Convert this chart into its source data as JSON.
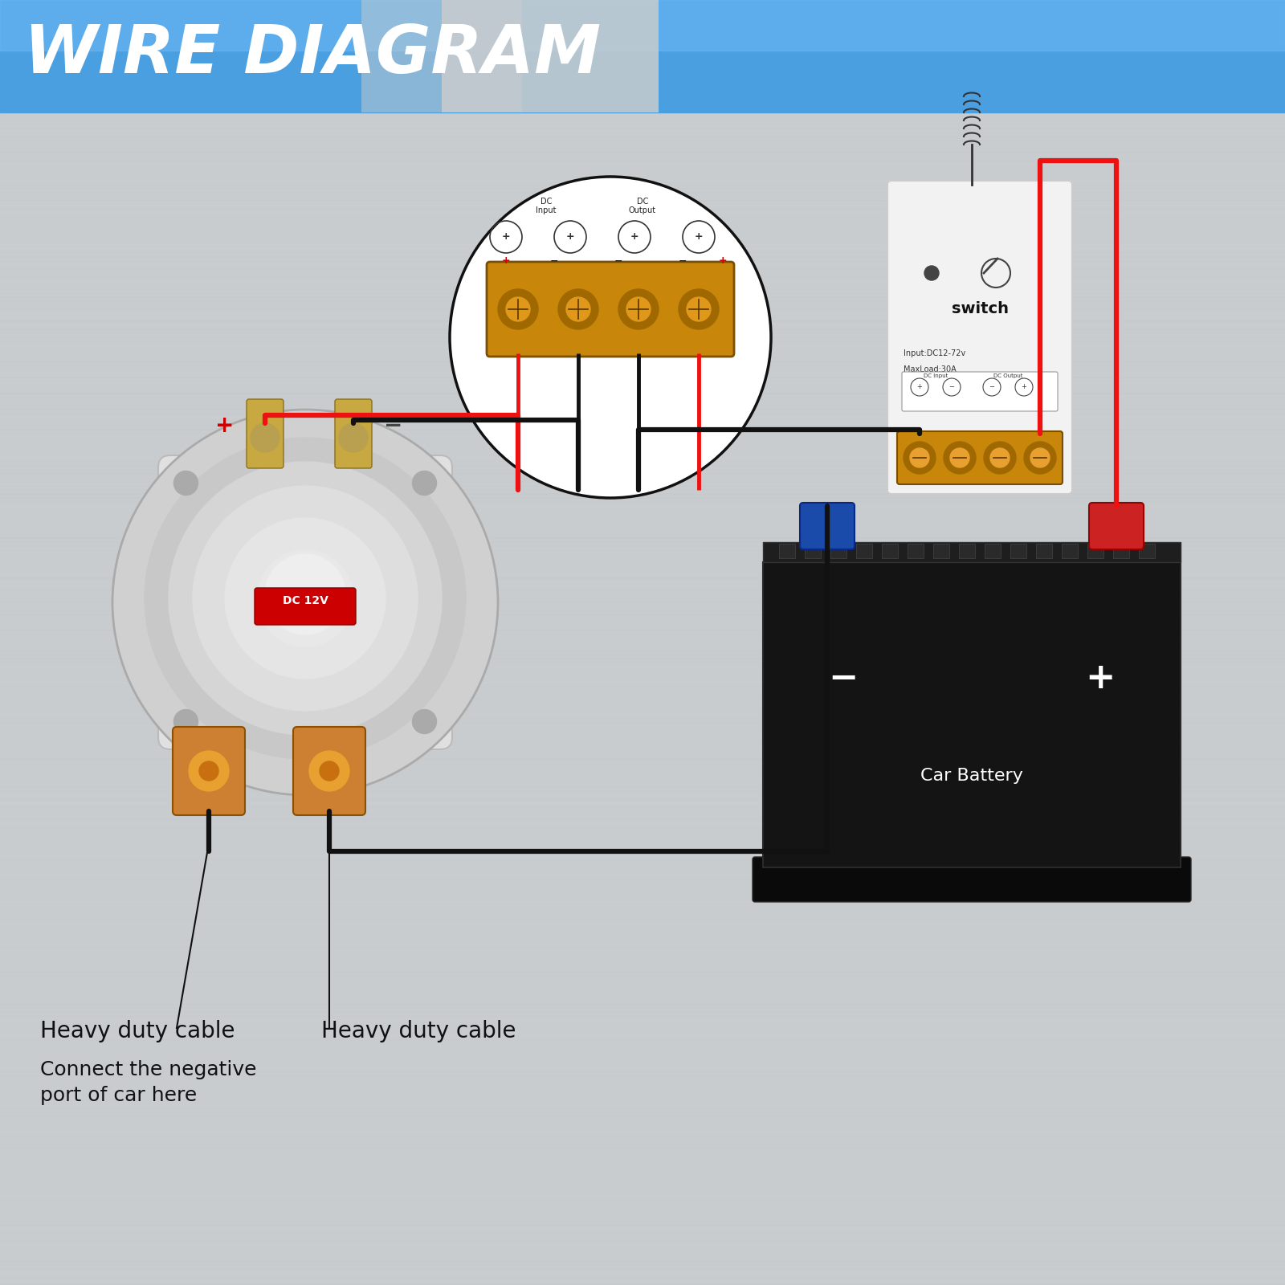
{
  "title": "WIRE DIAGRAM",
  "title_bg_color": "#4A9FE0",
  "title_text_color": "#FFFFFF",
  "bg_color_top": "#D0D5D8",
  "bg_color_mid": "#C2C8CC",
  "wire_black": "#111111",
  "wire_red": "#EE1111",
  "switch_label": "switch",
  "switch_spec1": "Input:DC12-72v",
  "switch_spec2": "MaxLoad:30A",
  "battery_label": "Car Battery",
  "battery_minus": "−",
  "battery_plus": "+",
  "disconnect_label": "DC 12V",
  "label1": "Heavy duty cable",
  "label2": "Heavy duty cable",
  "label3": "Connect the negative\nport of car here",
  "font_size_title": 60,
  "font_size_label": 20,
  "font_size_small": 14
}
